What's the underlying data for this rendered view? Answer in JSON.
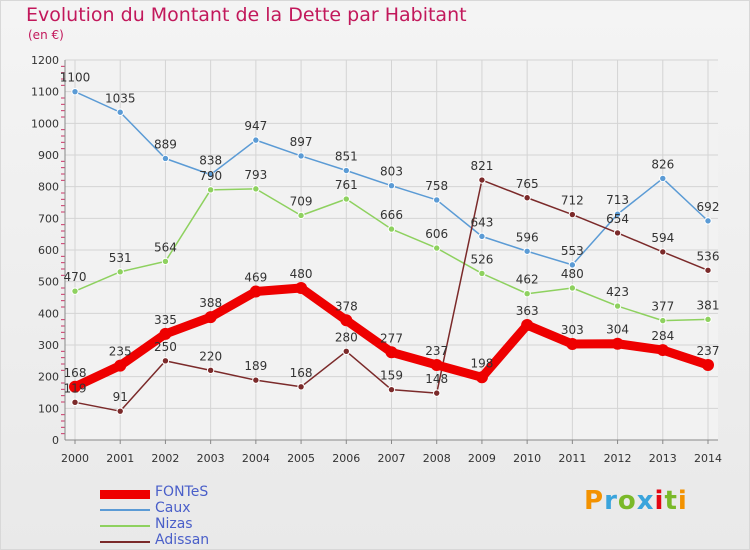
{
  "header": {
    "title": "Evolution du Montant de la Dette par Habitant",
    "unit": "(en €)"
  },
  "logo": {
    "text": "Proxiti",
    "colors": [
      "#f39200",
      "#3aa4dc",
      "#7ab929",
      "#3aa4dc",
      "#e30613",
      "#7ab929",
      "#f39200"
    ]
  },
  "chart_data": {
    "type": "line",
    "title": "Evolution du Montant de la Dette par Habitant",
    "subtitle": "(en €)",
    "xlabel": "",
    "ylabel": "",
    "ylim": [
      0,
      1200
    ],
    "yticks": [
      0,
      100,
      200,
      300,
      400,
      500,
      600,
      700,
      800,
      900,
      1000,
      1100,
      1200
    ],
    "grid": true,
    "legend_position": "bottom-left",
    "x": [
      "2000",
      "2001",
      "2002",
      "2003",
      "2004",
      "2005",
      "2006",
      "2007",
      "2008",
      "2009",
      "2010",
      "2011",
      "2012",
      "2013",
      "2014"
    ],
    "series": [
      {
        "name": "FONTeS",
        "color": "#ee0000",
        "values": [
          168,
          235,
          335,
          388,
          469,
          480,
          378,
          277,
          237,
          198,
          363,
          303,
          304,
          284,
          237
        ]
      },
      {
        "name": "Caux",
        "color": "#5b9bd5",
        "values": [
          1100,
          1035,
          889,
          838,
          947,
          897,
          851,
          803,
          758,
          643,
          596,
          553,
          713,
          826,
          692
        ]
      },
      {
        "name": "Nizas",
        "color": "#8ed15f",
        "values": [
          470,
          531,
          564,
          790,
          793,
          709,
          761,
          666,
          606,
          526,
          462,
          480,
          423,
          377,
          381
        ]
      },
      {
        "name": "Adissan",
        "color": "#7b2a2a",
        "values": [
          119,
          91,
          250,
          220,
          189,
          168,
          280,
          159,
          148,
          821,
          765,
          712,
          654,
          594,
          536
        ]
      }
    ]
  }
}
